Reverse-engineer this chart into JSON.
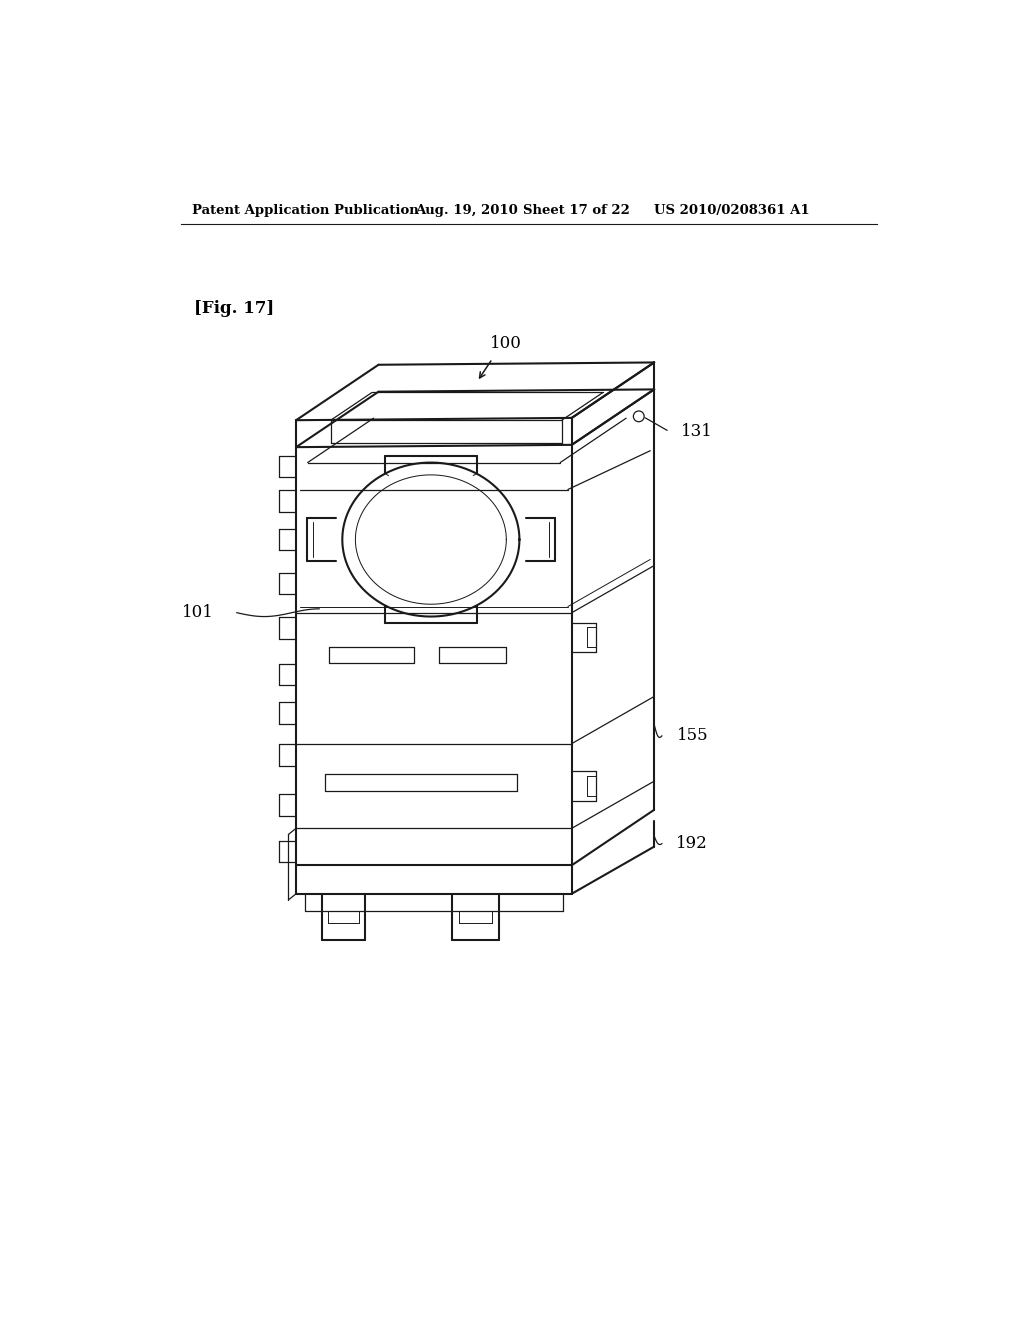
{
  "background_color": "#ffffff",
  "header_text": "Patent Application Publication",
  "header_date": "Aug. 19, 2010",
  "header_sheet": "Sheet 17 of 22",
  "header_patent": "US 2010/0208361 A1",
  "fig_label": "[Fig. 17]",
  "line_color": "#1a1a1a",
  "text_color": "#000000",
  "lw_main": 1.5,
  "lw_thin": 0.9,
  "lw_detail": 0.7
}
